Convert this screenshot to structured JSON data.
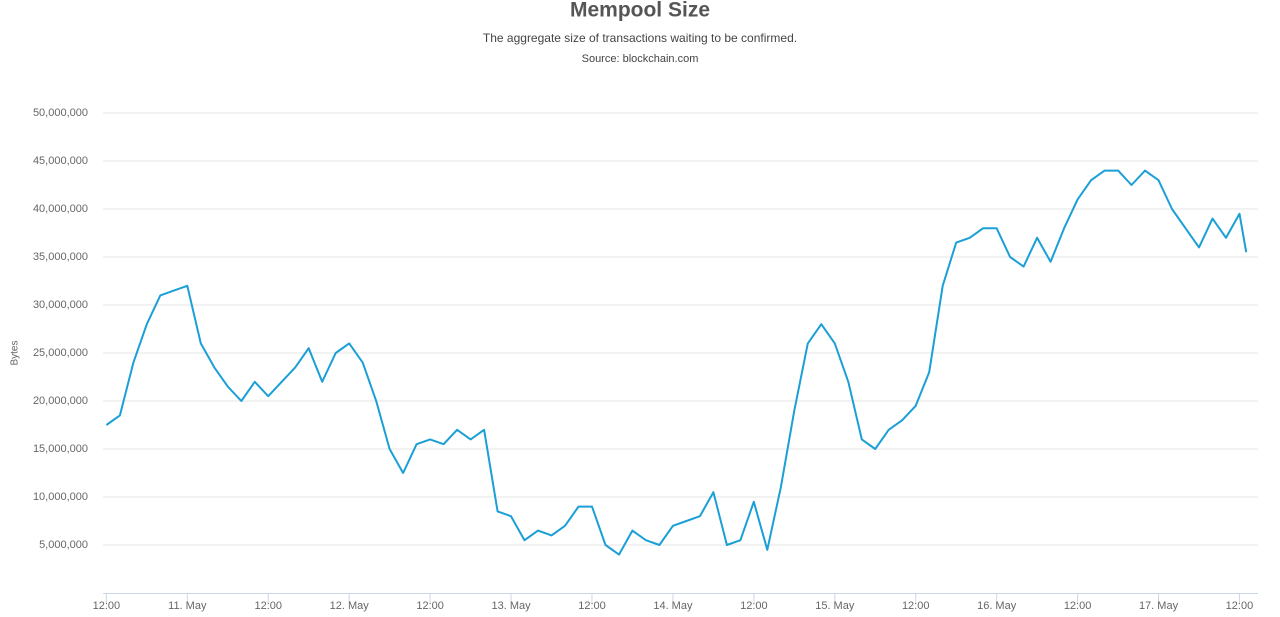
{
  "chart_data": {
    "type": "line",
    "title": "Mempool Size",
    "subtitle": "The aggregate size of transactions waiting to be confirmed.",
    "source": "Source: blockchain.com",
    "y_label": "Bytes",
    "grid": true,
    "x": [
      "10 May 12:00",
      "10 May 14:00",
      "10 May 16:00",
      "10 May 18:00",
      "10 May 20:00",
      "10 May 22:00",
      "11 May 00:00",
      "11 May 02:00",
      "11 May 04:00",
      "11 May 06:00",
      "11 May 08:00",
      "11 May 10:00",
      "11 May 12:00",
      "11 May 14:00",
      "11 May 16:00",
      "11 May 18:00",
      "11 May 20:00",
      "11 May 22:00",
      "12 May 00:00",
      "12 May 02:00",
      "12 May 04:00",
      "12 May 06:00",
      "12 May 08:00",
      "12 May 10:00",
      "12 May 12:00",
      "12 May 14:00",
      "12 May 16:00",
      "12 May 18:00",
      "12 May 20:00",
      "12 May 22:00",
      "13 May 00:00",
      "13 May 02:00",
      "13 May 04:00",
      "13 May 06:00",
      "13 May 08:00",
      "13 May 10:00",
      "13 May 12:00",
      "13 May 14:00",
      "13 May 16:00",
      "13 May 18:00",
      "13 May 20:00",
      "13 May 22:00",
      "14 May 00:00",
      "14 May 02:00",
      "14 May 04:00",
      "14 May 06:00",
      "14 May 08:00",
      "14 May 10:00",
      "14 May 12:00",
      "14 May 14:00",
      "14 May 16:00",
      "14 May 18:00",
      "14 May 20:00",
      "14 May 22:00",
      "15 May 00:00",
      "15 May 02:00",
      "15 May 04:00",
      "15 May 06:00",
      "15 May 08:00",
      "15 May 10:00",
      "15 May 12:00",
      "15 May 14:00",
      "15 May 16:00",
      "15 May 18:00",
      "15 May 20:00",
      "15 May 22:00",
      "16 May 00:00",
      "16 May 02:00",
      "16 May 04:00",
      "16 May 06:00",
      "16 May 08:00",
      "16 May 10:00",
      "16 May 12:00",
      "16 May 14:00",
      "16 May 16:00",
      "16 May 18:00",
      "16 May 20:00",
      "16 May 22:00",
      "17 May 00:00",
      "17 May 02:00",
      "17 May 04:00",
      "17 May 06:00",
      "17 May 08:00",
      "17 May 10:00",
      "17 May 12:00",
      "17 May 13:00"
    ],
    "series": [
      {
        "name": "Bytes",
        "color": "#1a9fd6",
        "values": [
          17500000,
          18500000,
          24000000,
          28000000,
          31000000,
          31500000,
          32000000,
          26000000,
          23500000,
          21500000,
          20000000,
          22000000,
          20500000,
          22000000,
          23500000,
          25500000,
          22000000,
          25000000,
          26000000,
          24000000,
          20000000,
          15000000,
          12500000,
          15500000,
          16000000,
          15500000,
          17000000,
          16000000,
          17000000,
          8500000,
          8000000,
          5500000,
          6500000,
          6000000,
          7000000,
          9000000,
          9000000,
          5000000,
          4000000,
          6500000,
          5500000,
          5000000,
          7000000,
          7500000,
          8000000,
          10500000,
          5000000,
          5500000,
          9500000,
          4500000,
          11000000,
          19000000,
          26000000,
          28000000,
          26000000,
          22000000,
          16000000,
          15000000,
          17000000,
          18000000,
          19500000,
          23000000,
          32000000,
          36500000,
          37000000,
          38000000,
          38000000,
          35000000,
          34000000,
          37000000,
          34500000,
          38000000,
          41000000,
          43000000,
          44000000,
          44000000,
          42500000,
          44000000,
          43000000,
          40000000,
          38000000,
          36000000,
          39000000,
          37000000,
          39500000,
          35500000
        ]
      }
    ],
    "xlim": [
      "10 May 11:30",
      "17 May 14:45"
    ],
    "xticks": [
      {
        "value": "10 May 12:00",
        "label": "12:00"
      },
      {
        "value": "11 May 00:00",
        "label": "11. May"
      },
      {
        "value": "11 May 12:00",
        "label": "12:00"
      },
      {
        "value": "12 May 00:00",
        "label": "12. May"
      },
      {
        "value": "12 May 12:00",
        "label": "12:00"
      },
      {
        "value": "13 May 00:00",
        "label": "13. May"
      },
      {
        "value": "13 May 12:00",
        "label": "12:00"
      },
      {
        "value": "14 May 00:00",
        "label": "14. May"
      },
      {
        "value": "14 May 12:00",
        "label": "12:00"
      },
      {
        "value": "15 May 00:00",
        "label": "15. May"
      },
      {
        "value": "15 May 12:00",
        "label": "12:00"
      },
      {
        "value": "16 May 00:00",
        "label": "16. May"
      },
      {
        "value": "16 May 12:00",
        "label": "12:00"
      },
      {
        "value": "17 May 00:00",
        "label": "17. May"
      },
      {
        "value": "17 May 12:00",
        "label": "12:00"
      }
    ],
    "ylim": [
      0,
      50000000
    ],
    "yticks": [
      {
        "value": 5000000,
        "label": "5,000,000"
      },
      {
        "value": 10000000,
        "label": "10,000,000"
      },
      {
        "value": 15000000,
        "label": "15,000,000"
      },
      {
        "value": 20000000,
        "label": "20,000,000"
      },
      {
        "value": 25000000,
        "label": "25,000,000"
      },
      {
        "value": 30000000,
        "label": "30,000,000"
      },
      {
        "value": 35000000,
        "label": "35,000,000"
      },
      {
        "value": 40000000,
        "label": "40,000,000"
      },
      {
        "value": 45000000,
        "label": "45,000,000"
      },
      {
        "value": 50000000,
        "label": "50,000,000"
      }
    ]
  }
}
